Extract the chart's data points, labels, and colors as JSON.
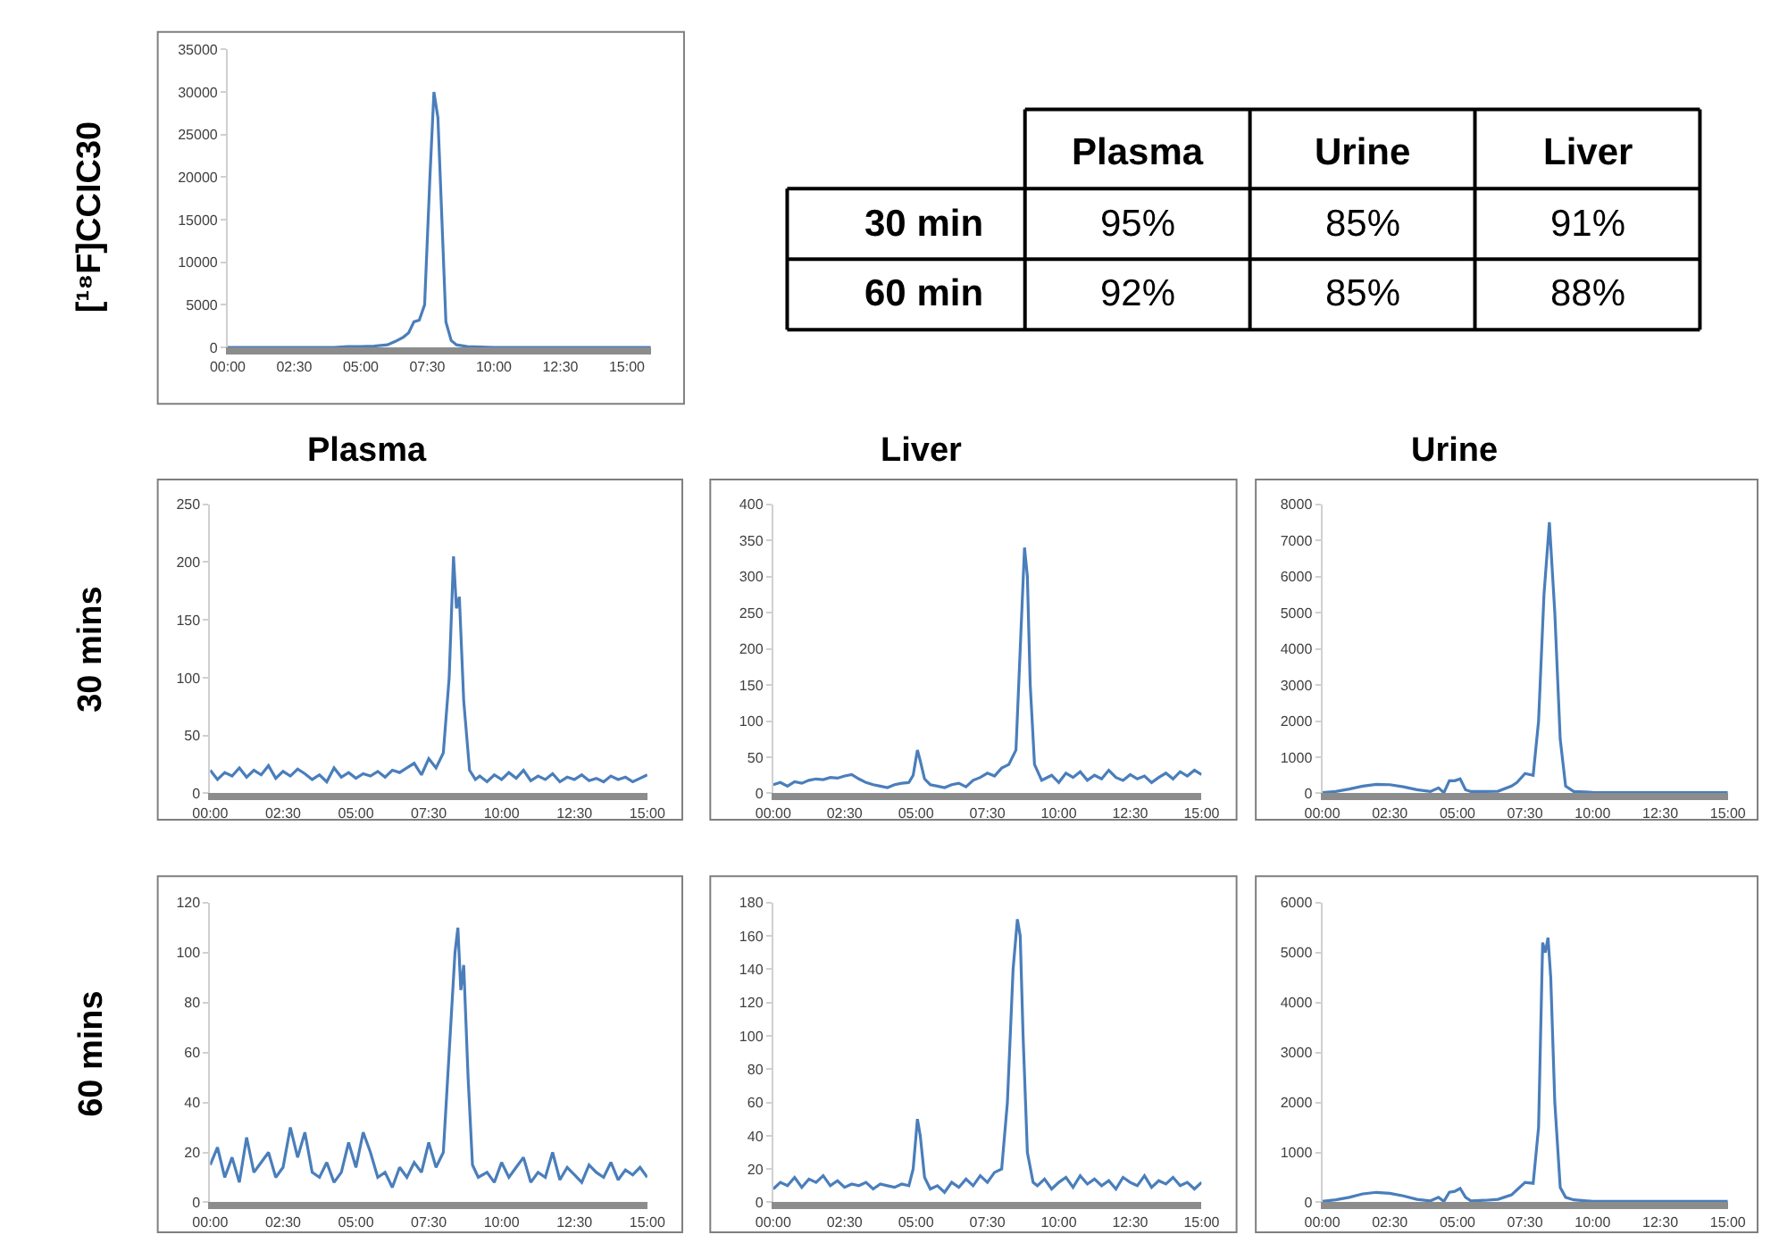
{
  "chart_data": [
    {
      "type": "line",
      "ylabel": "[¹⁸F]CCIC30",
      "xlim": [
        0,
        15.9
      ],
      "ylim": [
        0,
        35000
      ],
      "yticks": [
        0,
        5000,
        10000,
        15000,
        20000,
        25000,
        30000,
        35000
      ],
      "xticks": [
        {
          "value": 0,
          "label": "00:00"
        },
        {
          "value": 2.5,
          "label": "02:30"
        },
        {
          "value": 5,
          "label": "05:00"
        },
        {
          "value": 7.5,
          "label": "07:30"
        },
        {
          "value": 10,
          "label": "10:00"
        },
        {
          "value": 12.5,
          "label": "12:30"
        },
        {
          "value": 15,
          "label": "15:00"
        }
      ],
      "x": [
        0,
        1,
        2,
        3,
        4,
        4.5,
        5,
        5.5,
        6,
        6.3,
        6.6,
        6.8,
        7.0,
        7.2,
        7.4,
        7.6,
        7.75,
        7.9,
        8.05,
        8.2,
        8.4,
        8.6,
        9,
        10,
        11,
        12,
        13,
        14,
        15.9
      ],
      "series": [
        {
          "color": "#4a7ebb",
          "values": [
            0,
            0,
            0,
            0,
            0,
            100,
            100,
            150,
            300,
            700,
            1200,
            1700,
            3000,
            3200,
            5000,
            20000,
            30000,
            27000,
            15000,
            3000,
            800,
            300,
            100,
            0,
            0,
            0,
            0,
            0,
            0
          ]
        }
      ]
    },
    {
      "type": "other",
      "categories": [
        "Plasma",
        "Urine",
        "Liver"
      ],
      "y_categories": [
        "30 min",
        "60 min"
      ],
      "cell_labels": [
        [
          "95%",
          "85%",
          "91%"
        ],
        [
          "92%",
          "85%",
          "88%"
        ]
      ]
    },
    {
      "type": "line",
      "title": "Plasma",
      "ylabel": "30 mins",
      "xlim": [
        0,
        15
      ],
      "ylim": [
        0,
        250
      ],
      "yticks": [
        0,
        50,
        100,
        150,
        200,
        250
      ],
      "xticks": [
        {
          "value": 0,
          "label": "00:00"
        },
        {
          "value": 2.5,
          "label": "02:30"
        },
        {
          "value": 5,
          "label": "05:00"
        },
        {
          "value": 7.5,
          "label": "07:30"
        },
        {
          "value": 10,
          "label": "10:00"
        },
        {
          "value": 12.5,
          "label": "12:30"
        },
        {
          "value": 15,
          "label": "15:00"
        }
      ],
      "x": [
        0,
        0.25,
        0.5,
        0.75,
        1,
        1.25,
        1.5,
        1.75,
        2,
        2.25,
        2.5,
        2.75,
        3,
        3.25,
        3.5,
        3.75,
        4,
        4.25,
        4.5,
        4.75,
        5,
        5.25,
        5.5,
        5.75,
        6,
        6.25,
        6.5,
        6.75,
        7,
        7.25,
        7.5,
        7.75,
        8.0,
        8.2,
        8.35,
        8.45,
        8.55,
        8.7,
        8.9,
        9.1,
        9.25,
        9.5,
        9.75,
        10,
        10.25,
        10.5,
        10.75,
        11,
        11.25,
        11.5,
        11.75,
        12,
        12.25,
        12.5,
        12.75,
        13,
        13.25,
        13.5,
        13.75,
        14,
        14.25,
        14.5,
        14.75,
        15
      ],
      "series": [
        {
          "color": "#4a7ebb",
          "values": [
            20,
            12,
            18,
            15,
            22,
            14,
            20,
            16,
            24,
            13,
            19,
            15,
            21,
            17,
            12,
            16,
            10,
            22,
            14,
            18,
            13,
            17,
            15,
            19,
            14,
            20,
            18,
            22,
            26,
            16,
            30,
            22,
            35,
            100,
            205,
            160,
            170,
            80,
            20,
            12,
            15,
            10,
            16,
            12,
            18,
            13,
            20,
            11,
            15,
            12,
            17,
            10,
            14,
            12,
            16,
            11,
            13,
            10,
            15,
            12,
            14,
            10,
            13,
            16
          ]
        }
      ]
    },
    {
      "type": "line",
      "title": "Liver",
      "xlim": [
        0,
        15
      ],
      "ylim": [
        0,
        400
      ],
      "yticks": [
        0,
        50,
        100,
        150,
        200,
        250,
        300,
        350,
        400
      ],
      "xticks": [
        {
          "value": 0,
          "label": "00:00"
        },
        {
          "value": 2.5,
          "label": "02:30"
        },
        {
          "value": 5,
          "label": "05:00"
        },
        {
          "value": 7.5,
          "label": "07:30"
        },
        {
          "value": 10,
          "label": "10:00"
        },
        {
          "value": 12.5,
          "label": "12:30"
        },
        {
          "value": 15,
          "label": "15:00"
        }
      ],
      "x": [
        0,
        0.25,
        0.5,
        0.75,
        1,
        1.25,
        1.5,
        1.75,
        2,
        2.25,
        2.5,
        2.75,
        3,
        3.25,
        3.5,
        3.75,
        4,
        4.25,
        4.5,
        4.75,
        4.9,
        5.05,
        5.15,
        5.3,
        5.5,
        5.75,
        6,
        6.25,
        6.5,
        6.75,
        7,
        7.25,
        7.5,
        7.75,
        8,
        8.25,
        8.5,
        8.65,
        8.8,
        8.9,
        9.0,
        9.15,
        9.4,
        9.5,
        9.75,
        10,
        10.25,
        10.5,
        10.75,
        11,
        11.25,
        11.5,
        11.75,
        12,
        12.25,
        12.5,
        12.75,
        13,
        13.25,
        13.5,
        13.75,
        14,
        14.25,
        14.5,
        14.75,
        15
      ],
      "series": [
        {
          "color": "#4a7ebb",
          "values": [
            12,
            15,
            10,
            16,
            14,
            18,
            20,
            19,
            22,
            21,
            24,
            26,
            20,
            15,
            12,
            10,
            8,
            12,
            14,
            15,
            25,
            60,
            45,
            20,
            12,
            10,
            8,
            12,
            14,
            9,
            18,
            22,
            28,
            24,
            35,
            40,
            60,
            200,
            340,
            300,
            150,
            40,
            18,
            20,
            25,
            15,
            28,
            22,
            30,
            18,
            25,
            20,
            32,
            22,
            18,
            26,
            20,
            24,
            15,
            22,
            28,
            20,
            30,
            24,
            32,
            26
          ]
        }
      ]
    },
    {
      "type": "line",
      "title": "Urine",
      "xlim": [
        0,
        15
      ],
      "ylim": [
        0,
        8000
      ],
      "yticks": [
        0,
        1000,
        2000,
        3000,
        4000,
        5000,
        6000,
        7000,
        8000
      ],
      "xticks": [
        {
          "value": 0,
          "label": "00:00"
        },
        {
          "value": 2.5,
          "label": "02:30"
        },
        {
          "value": 5,
          "label": "05:00"
        },
        {
          "value": 7.5,
          "label": "07:30"
        },
        {
          "value": 10,
          "label": "10:00"
        },
        {
          "value": 12.5,
          "label": "12:30"
        },
        {
          "value": 15,
          "label": "15:00"
        }
      ],
      "x": [
        0,
        0.5,
        1,
        1.5,
        2,
        2.5,
        3,
        3.5,
        4,
        4.3,
        4.5,
        4.7,
        4.9,
        5.1,
        5.3,
        5.5,
        6,
        6.5,
        7,
        7.2,
        7.5,
        7.8,
        8.0,
        8.2,
        8.4,
        8.6,
        8.8,
        9.0,
        9.3,
        10,
        11,
        12,
        13,
        14,
        15
      ],
      "series": [
        {
          "color": "#4a7ebb",
          "values": [
            20,
            50,
            120,
            200,
            250,
            240,
            180,
            100,
            50,
            150,
            20,
            350,
            350,
            400,
            100,
            50,
            50,
            60,
            200,
            300,
            550,
            500,
            2000,
            5500,
            7500,
            5000,
            1500,
            200,
            50,
            30,
            20,
            20,
            20,
            20,
            20
          ]
        }
      ]
    },
    {
      "type": "line",
      "ylabel": "60 mins",
      "xlim": [
        0,
        15
      ],
      "ylim": [
        0,
        120
      ],
      "yticks": [
        0,
        20,
        40,
        60,
        80,
        100,
        120
      ],
      "xticks": [
        {
          "value": 0,
          "label": "00:00"
        },
        {
          "value": 2.5,
          "label": "02:30"
        },
        {
          "value": 5,
          "label": "05:00"
        },
        {
          "value": 7.5,
          "label": "07:30"
        },
        {
          "value": 10,
          "label": "10:00"
        },
        {
          "value": 12.5,
          "label": "12:30"
        },
        {
          "value": 15,
          "label": "15:00"
        }
      ],
      "x": [
        0,
        0.25,
        0.5,
        0.75,
        1,
        1.25,
        1.5,
        1.75,
        2,
        2.25,
        2.5,
        2.75,
        3,
        3.25,
        3.5,
        3.75,
        4,
        4.25,
        4.5,
        4.75,
        5,
        5.25,
        5.5,
        5.75,
        6,
        6.25,
        6.5,
        6.75,
        7,
        7.25,
        7.5,
        7.75,
        8.0,
        8.2,
        8.4,
        8.5,
        8.6,
        8.7,
        8.85,
        9.0,
        9.2,
        9.5,
        9.75,
        10,
        10.25,
        10.5,
        10.75,
        11,
        11.25,
        11.5,
        11.75,
        12,
        12.25,
        12.5,
        12.75,
        13,
        13.25,
        13.5,
        13.75,
        14,
        14.25,
        14.5,
        14.75,
        15
      ],
      "series": [
        {
          "color": "#4a7ebb",
          "values": [
            15,
            22,
            10,
            18,
            8,
            26,
            12,
            16,
            20,
            10,
            14,
            30,
            18,
            28,
            12,
            10,
            16,
            8,
            12,
            24,
            14,
            28,
            20,
            10,
            12,
            6,
            14,
            10,
            16,
            12,
            24,
            14,
            20,
            60,
            100,
            110,
            85,
            95,
            50,
            15,
            10,
            12,
            8,
            16,
            10,
            14,
            18,
            8,
            12,
            10,
            20,
            9,
            14,
            11,
            8,
            15,
            12,
            10,
            16,
            9,
            13,
            11,
            14,
            10
          ]
        }
      ]
    },
    {
      "type": "line",
      "xlim": [
        0,
        15
      ],
      "ylim": [
        0,
        180
      ],
      "yticks": [
        0,
        20,
        40,
        60,
        80,
        100,
        120,
        140,
        160,
        180
      ],
      "xticks": [
        {
          "value": 0,
          "label": "00:00"
        },
        {
          "value": 2.5,
          "label": "02:30"
        },
        {
          "value": 5,
          "label": "05:00"
        },
        {
          "value": 7.5,
          "label": "07:30"
        },
        {
          "value": 10,
          "label": "10:00"
        },
        {
          "value": 12.5,
          "label": "12:30"
        },
        {
          "value": 15,
          "label": "15:00"
        }
      ],
      "x": [
        0,
        0.25,
        0.5,
        0.75,
        1,
        1.25,
        1.5,
        1.75,
        2,
        2.25,
        2.5,
        2.75,
        3,
        3.25,
        3.5,
        3.75,
        4,
        4.25,
        4.5,
        4.75,
        4.9,
        5.05,
        5.15,
        5.3,
        5.5,
        5.75,
        6,
        6.25,
        6.5,
        6.75,
        7,
        7.25,
        7.5,
        7.75,
        8.0,
        8.2,
        8.4,
        8.55,
        8.65,
        8.75,
        8.9,
        9.1,
        9.25,
        9.5,
        9.75,
        10,
        10.25,
        10.5,
        10.75,
        11,
        11.25,
        11.5,
        11.75,
        12,
        12.25,
        12.5,
        12.75,
        13,
        13.25,
        13.5,
        13.75,
        14,
        14.25,
        14.5,
        14.75,
        15
      ],
      "series": [
        {
          "color": "#4a7ebb",
          "values": [
            8,
            12,
            10,
            15,
            9,
            14,
            12,
            16,
            10,
            13,
            9,
            11,
            10,
            12,
            8,
            11,
            10,
            9,
            11,
            10,
            20,
            50,
            40,
            15,
            8,
            10,
            6,
            12,
            9,
            14,
            10,
            16,
            12,
            18,
            20,
            60,
            140,
            170,
            160,
            100,
            30,
            12,
            10,
            14,
            8,
            12,
            15,
            9,
            16,
            11,
            14,
            10,
            13,
            8,
            15,
            12,
            10,
            16,
            9,
            13,
            11,
            15,
            10,
            12,
            8,
            12
          ]
        }
      ]
    },
    {
      "type": "line",
      "xlim": [
        0,
        15
      ],
      "ylim": [
        0,
        6000
      ],
      "yticks": [
        0,
        1000,
        2000,
        3000,
        4000,
        5000,
        6000
      ],
      "xticks": [
        {
          "value": 0,
          "label": "00:00"
        },
        {
          "value": 2.5,
          "label": "02:30"
        },
        {
          "value": 5,
          "label": "05:00"
        },
        {
          "value": 7.5,
          "label": "07:30"
        },
        {
          "value": 10,
          "label": "10:00"
        },
        {
          "value": 12.5,
          "label": "12:30"
        },
        {
          "value": 15,
          "label": "15:00"
        }
      ],
      "x": [
        0,
        0.5,
        1,
        1.5,
        2,
        2.5,
        3,
        3.5,
        4,
        4.3,
        4.5,
        4.7,
        4.9,
        5.1,
        5.3,
        5.5,
        6,
        6.5,
        7,
        7.2,
        7.5,
        7.8,
        8.0,
        8.15,
        8.25,
        8.35,
        8.45,
        8.6,
        8.8,
        9.0,
        9.3,
        10,
        11,
        12,
        13,
        14,
        15
      ],
      "series": [
        {
          "color": "#4a7ebb",
          "values": [
            20,
            50,
            100,
            170,
            200,
            180,
            130,
            60,
            30,
            100,
            20,
            200,
            220,
            280,
            100,
            30,
            40,
            60,
            150,
            250,
            400,
            380,
            1500,
            5200,
            5000,
            5300,
            4500,
            2000,
            300,
            100,
            50,
            20,
            20,
            20,
            20,
            20,
            20
          ]
        }
      ]
    }
  ]
}
